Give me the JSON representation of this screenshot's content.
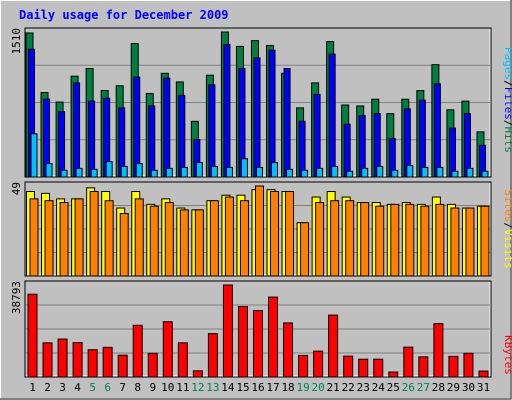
{
  "chart_data": {
    "type": "bar",
    "title": "Daily usage for December 2009",
    "categories": [
      "1",
      "2",
      "3",
      "4",
      "5",
      "6",
      "7",
      "8",
      "9",
      "10",
      "11",
      "12",
      "13",
      "14",
      "15",
      "16",
      "17",
      "18",
      "19",
      "20",
      "21",
      "22",
      "23",
      "24",
      "25",
      "26",
      "27",
      "28",
      "29",
      "30",
      "31"
    ],
    "weekend_days": [
      "5",
      "6",
      "12",
      "13",
      "19",
      "20",
      "26",
      "27"
    ],
    "panels": [
      {
        "id": "hits-files-pages",
        "max_label": "1510",
        "ylim": [
          0,
          1510
        ],
        "series": [
          {
            "name": "Hits",
            "color": "#008040",
            "values": [
              1500,
              880,
              780,
              1050,
              1130,
              900,
              950,
              1390,
              870,
              1080,
              990,
              580,
              1060,
              1570,
              1360,
              1420,
              1370,
              1080,
              720,
              980,
              1410,
              750,
              740,
              810,
              660,
              810,
              900,
              1170,
              700,
              790,
              470
            ]
          },
          {
            "name": "Files",
            "color": "#0000ff",
            "values": [
              1330,
              810,
              680,
              980,
              790,
              820,
              720,
              1040,
              740,
              1030,
              850,
              390,
              960,
              1380,
              1130,
              1240,
              1320,
              1130,
              580,
              860,
              1280,
              550,
              640,
              660,
              400,
              710,
              800,
              970,
              510,
              660,
              330
            ]
          },
          {
            "name": "Pages",
            "color": "#00c0ff",
            "values": [
              450,
              140,
              70,
              90,
              80,
              160,
              110,
              140,
              70,
              90,
              100,
              150,
              110,
              100,
              190,
              100,
              150,
              80,
              70,
              90,
              110,
              60,
              90,
              110,
              70,
              120,
              100,
              100,
              60,
              90,
              60
            ]
          }
        ]
      },
      {
        "id": "sites-visits",
        "max_label": "49",
        "ylim": [
          0,
          49
        ],
        "series": [
          {
            "name": "Visits",
            "color": "#ffff00",
            "values": [
              46,
              45,
              42,
              42,
              48,
              46,
              37,
              46,
              39,
              42,
              37,
              36,
              41,
              44,
              44,
              47,
              47,
              46,
              29,
              43,
              46,
              43,
              40,
              40,
              39,
              40,
              39,
              43,
              39,
              37,
              38
            ]
          },
          {
            "name": "Sites",
            "color": "#ff8000",
            "values": [
              42,
              41,
              40,
              42,
              46,
              41,
              34,
              42,
              38,
              40,
              36,
              36,
              41,
              43,
              41,
              49,
              46,
              46,
              29,
              40,
              41,
              41,
              40,
              38,
              39,
              39,
              38,
              39,
              37,
              37,
              38
            ]
          }
        ]
      },
      {
        "id": "kbytes",
        "max_label": "38793",
        "ylim": [
          0,
          38793
        ],
        "series": [
          {
            "name": "KBytes",
            "color": "#ff0000",
            "values": [
              34900,
              14400,
              16000,
              14500,
              11500,
              12500,
              9200,
              21800,
              10000,
              23300,
              14400,
              2600,
              18300,
              40100,
              29700,
              28000,
              33700,
              22800,
              9100,
              10900,
              26100,
              8800,
              7500,
              7500,
              2100,
              12600,
              8500,
              22500,
              8700,
              10000,
              2500
            ]
          }
        ]
      }
    ],
    "legend": {
      "hits_panel": [
        "Pages",
        "/",
        "Files",
        "/",
        "Hits"
      ],
      "sites_panel": [
        "Sites",
        "/",
        "Visits"
      ],
      "kbytes_panel": [
        "KBytes"
      ]
    },
    "colors": {
      "background": "#c0c0c0",
      "plot_background": "#c0c0c0",
      "title": "#0000ff",
      "gridline": "#808080",
      "weekend_label": "#00805c",
      "weekday_label": "#000000"
    }
  }
}
